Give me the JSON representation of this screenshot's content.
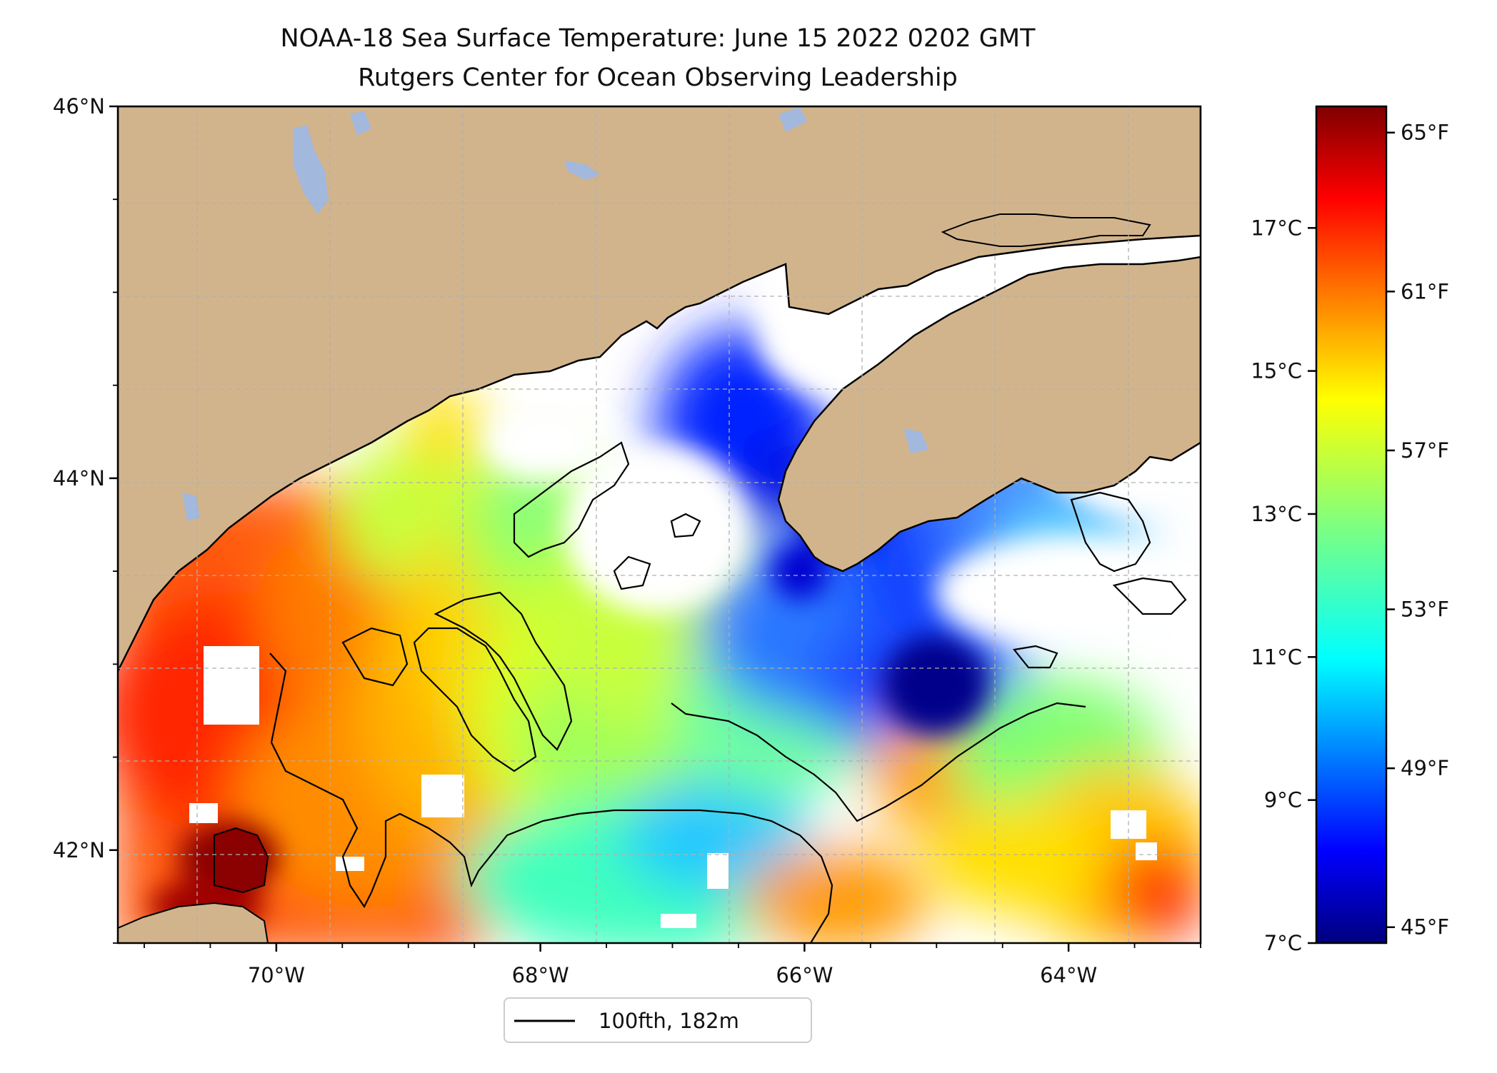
{
  "title": {
    "line1": "NOAA-18 Sea Surface Temperature: June 15 2022 0202 GMT",
    "line2": "Rutgers Center for Ocean Observing Leadership"
  },
  "map": {
    "lon_range": [
      -71.2,
      -63.0
    ],
    "lat_range": [
      41.5,
      46.0
    ],
    "land_color": "#d2b48c",
    "lake_color": "#a2b8dd",
    "no_data_color": "#ffffff",
    "lat_ticks": [
      {
        "value": 46,
        "label": "46°N"
      },
      {
        "value": 44,
        "label": "44°N"
      },
      {
        "value": 42,
        "label": "42°N"
      }
    ],
    "lon_ticks": [
      {
        "value": -70,
        "label": "70°W"
      },
      {
        "value": -68,
        "label": "68°W"
      },
      {
        "value": -66,
        "label": "66°W"
      },
      {
        "value": -64,
        "label": "64°W"
      }
    ]
  },
  "legend": {
    "label": "100fth, 182m"
  },
  "colorbar": {
    "colormap": "jet",
    "celsius_range": [
      7,
      18.7
    ],
    "celsius_ticks": [
      {
        "value": 7,
        "label": "7°C"
      },
      {
        "value": 9,
        "label": "9°C"
      },
      {
        "value": 11,
        "label": "11°C"
      },
      {
        "value": 13,
        "label": "13°C"
      },
      {
        "value": 15,
        "label": "15°C"
      },
      {
        "value": 17,
        "label": "17°C"
      }
    ],
    "fahrenheit_ticks": [
      {
        "value": 45,
        "label": "45°F"
      },
      {
        "value": 49,
        "label": "49°F"
      },
      {
        "value": 53,
        "label": "53°F"
      },
      {
        "value": 57,
        "label": "57°F"
      },
      {
        "value": 61,
        "label": "61°F"
      },
      {
        "value": 65,
        "label": "65°F"
      }
    ]
  }
}
